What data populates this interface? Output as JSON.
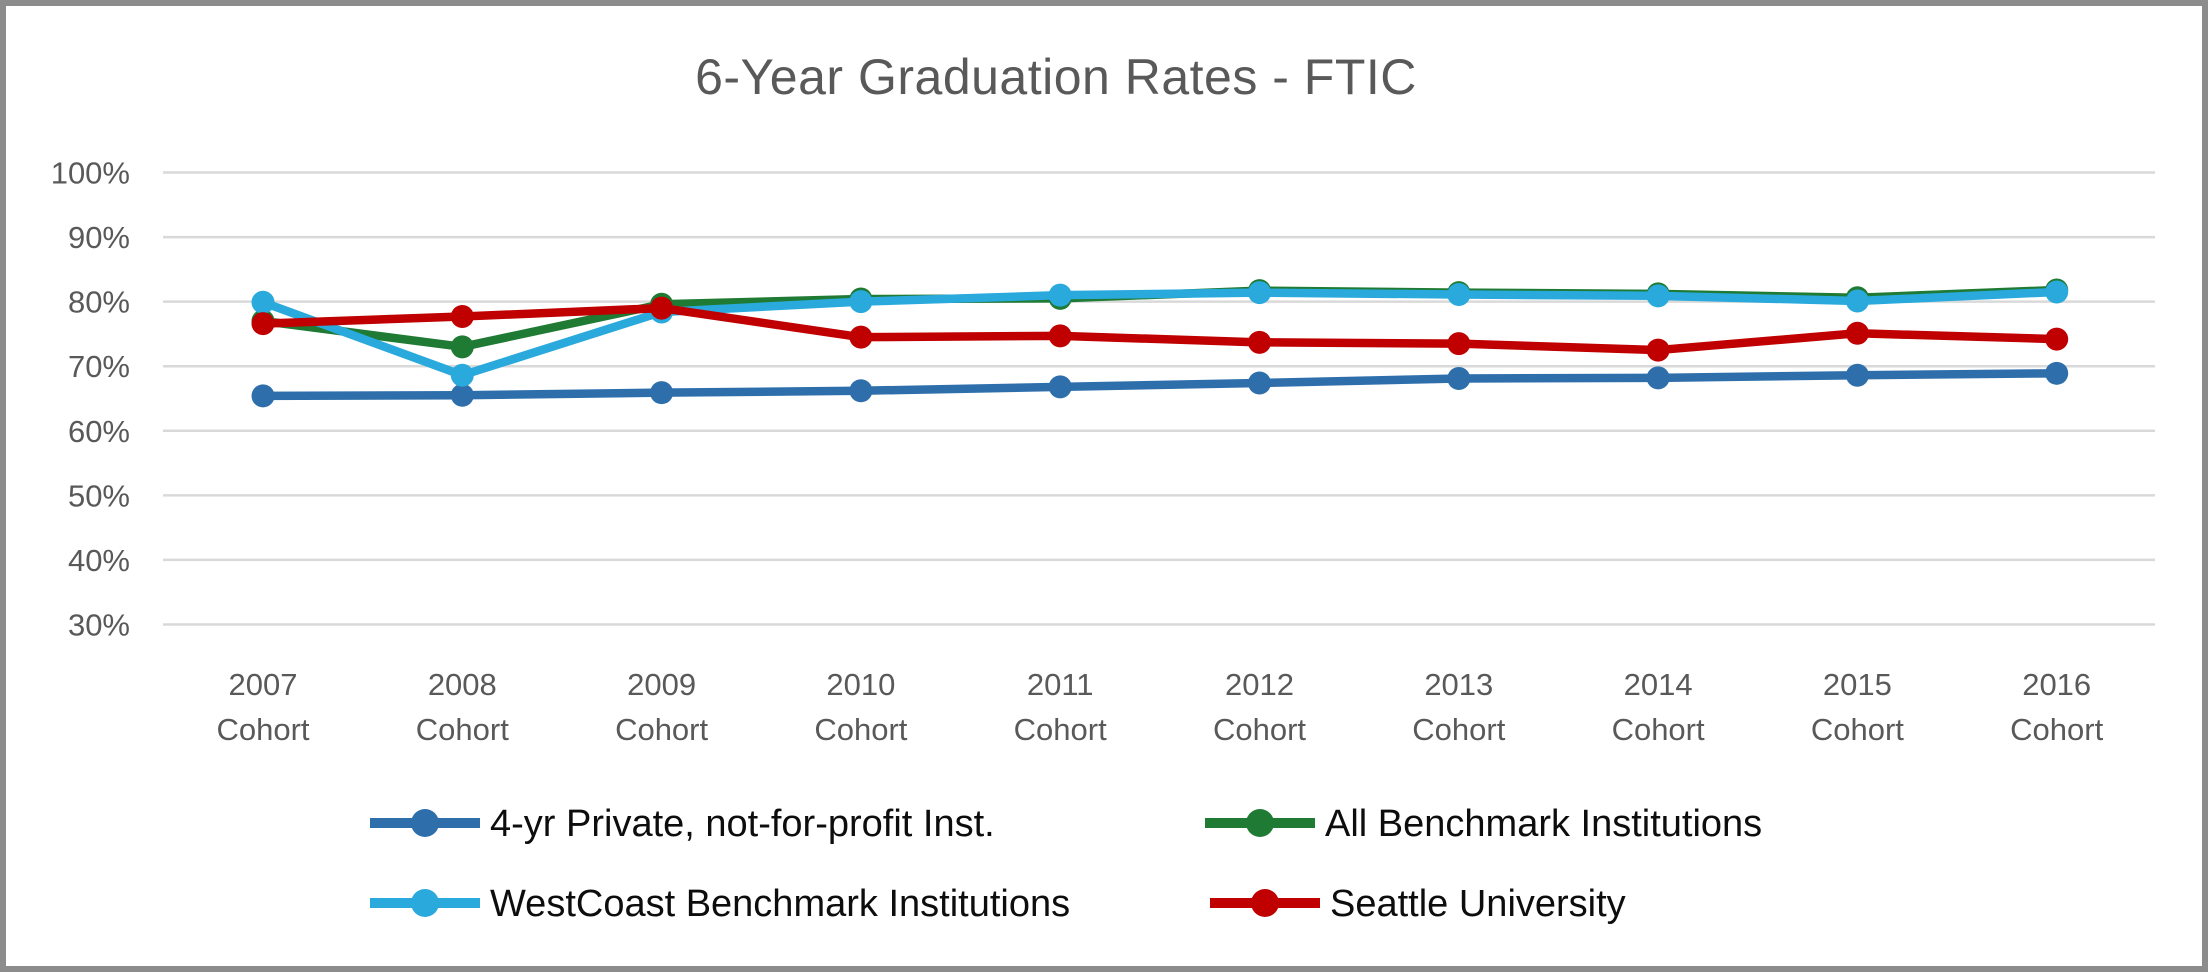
{
  "window": {
    "background": "#FFFFFF",
    "frame_border_color": "#8C8C8C"
  },
  "chart_data": {
    "type": "line",
    "title": "6-Year Graduation Rates - FTIC",
    "xlabel": "",
    "ylabel": "",
    "categories": [
      "2007",
      "2008",
      "2009",
      "2010",
      "2011",
      "2012",
      "2013",
      "2014",
      "2015",
      "2016"
    ],
    "category_suffix": "Cohort",
    "y_ticks": [
      100,
      90,
      80,
      70,
      60,
      50,
      40,
      30
    ],
    "y_tick_suffix": "%",
    "ylim": [
      30,
      100
    ],
    "grid": "horizontal",
    "gridline_color": "#D9D9D9",
    "legend_position": "bottom",
    "title_color": "#595959",
    "axis_label_color": "#595959",
    "legend_text_color": "#0D0D0D",
    "series": [
      {
        "name": "4-yr Private, not-for-profit Inst.",
        "color": "#2E6FAB",
        "values": [
          65.4,
          65.5,
          65.9,
          66.2,
          66.8,
          67.4,
          68.1,
          68.2,
          68.6,
          68.9
        ]
      },
      {
        "name": "All Benchmark Institutions",
        "color": "#1F7A34",
        "values": [
          77.0,
          73.0,
          79.6,
          80.4,
          80.5,
          81.7,
          81.4,
          81.2,
          80.6,
          81.8
        ]
      },
      {
        "name": "WestCoast Benchmark Institutions",
        "color": "#29A9DC",
        "values": [
          79.9,
          68.6,
          78.4,
          80.0,
          81.0,
          81.4,
          81.1,
          80.9,
          80.1,
          81.5
        ]
      },
      {
        "name": "Seattle University",
        "color": "#C00000",
        "values": [
          76.6,
          77.7,
          79.0,
          74.5,
          74.7,
          73.7,
          73.5,
          72.5,
          75.1,
          74.2
        ]
      }
    ],
    "legend_rows": [
      [
        0,
        1
      ],
      [
        2,
        3
      ]
    ]
  }
}
